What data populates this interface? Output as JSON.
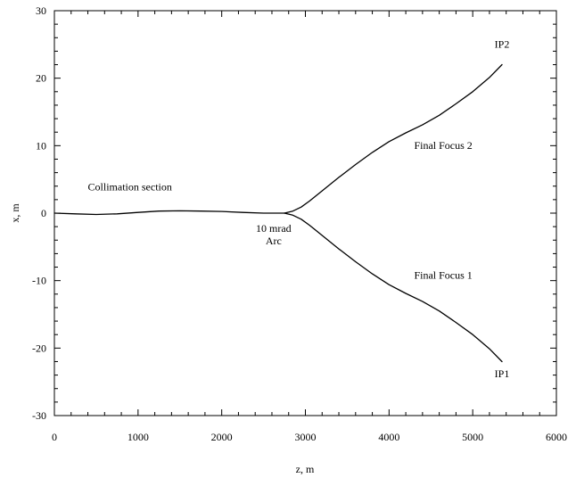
{
  "chart_data": {
    "type": "line",
    "title": "",
    "xlabel": "z, m",
    "ylabel": "x, m",
    "xlim": [
      0,
      6000
    ],
    "ylim": [
      -30,
      30
    ],
    "grid": false,
    "x_ticks": [
      0,
      1000,
      2000,
      3000,
      4000,
      5000,
      6000
    ],
    "y_ticks": [
      -30,
      -20,
      -10,
      0,
      10,
      20,
      30
    ],
    "x_tick_labels": [
      "0",
      "1000",
      "2000",
      "3000",
      "4000",
      "5000",
      "6000"
    ],
    "y_tick_labels": [
      "-30",
      "-20",
      "-10",
      "0",
      "10",
      "20",
      "30"
    ],
    "series": [
      {
        "values": [
          [
            0,
            0
          ],
          [
            250,
            -0.1
          ],
          [
            500,
            -0.2
          ],
          [
            750,
            -0.1
          ],
          [
            1000,
            0.1
          ],
          [
            1250,
            0.3
          ],
          [
            1500,
            0.35
          ],
          [
            1750,
            0.3
          ],
          [
            2000,
            0.25
          ],
          [
            2250,
            0.1
          ],
          [
            2500,
            0.0
          ],
          [
            2750,
            0.0
          ]
        ]
      },
      {
        "values": [
          [
            2750,
            0.0
          ],
          [
            2850,
            0.3
          ],
          [
            2950,
            0.9
          ],
          [
            3050,
            1.8
          ],
          [
            3200,
            3.3
          ],
          [
            3400,
            5.3
          ],
          [
            3600,
            7.2
          ],
          [
            3800,
            9.0
          ],
          [
            4000,
            10.6
          ],
          [
            4200,
            11.9
          ],
          [
            4400,
            13.1
          ],
          [
            4600,
            14.5
          ],
          [
            4800,
            16.2
          ],
          [
            5000,
            18.0
          ],
          [
            5200,
            20.1
          ],
          [
            5350,
            22.0
          ]
        ]
      },
      {
        "values": [
          [
            2750,
            0.0
          ],
          [
            2850,
            -0.3
          ],
          [
            2950,
            -0.9
          ],
          [
            3050,
            -1.8
          ],
          [
            3200,
            -3.3
          ],
          [
            3400,
            -5.3
          ],
          [
            3600,
            -7.2
          ],
          [
            3800,
            -9.0
          ],
          [
            4000,
            -10.6
          ],
          [
            4200,
            -11.9
          ],
          [
            4400,
            -13.1
          ],
          [
            4600,
            -14.5
          ],
          [
            4800,
            -16.2
          ],
          [
            5000,
            -18.0
          ],
          [
            5200,
            -20.1
          ],
          [
            5350,
            -22.0
          ]
        ]
      }
    ],
    "annotations": [
      {
        "text": "Collimation section",
        "x": 400,
        "y": 3.4,
        "anchor": "start"
      },
      {
        "text": "10 mrad",
        "x": 2620,
        "y": -2.8,
        "anchor": "middle"
      },
      {
        "text": "Arc",
        "x": 2620,
        "y": -4.6,
        "anchor": "middle"
      },
      {
        "text": "Final Focus 2",
        "x": 4300,
        "y": 9.5,
        "anchor": "start"
      },
      {
        "text": "Final Focus 1",
        "x": 4300,
        "y": -9.7,
        "anchor": "start"
      },
      {
        "text": "IP2",
        "x": 5350,
        "y": 24.5,
        "anchor": "middle"
      },
      {
        "text": "IP1",
        "x": 5350,
        "y": -24.3,
        "anchor": "middle"
      }
    ]
  }
}
